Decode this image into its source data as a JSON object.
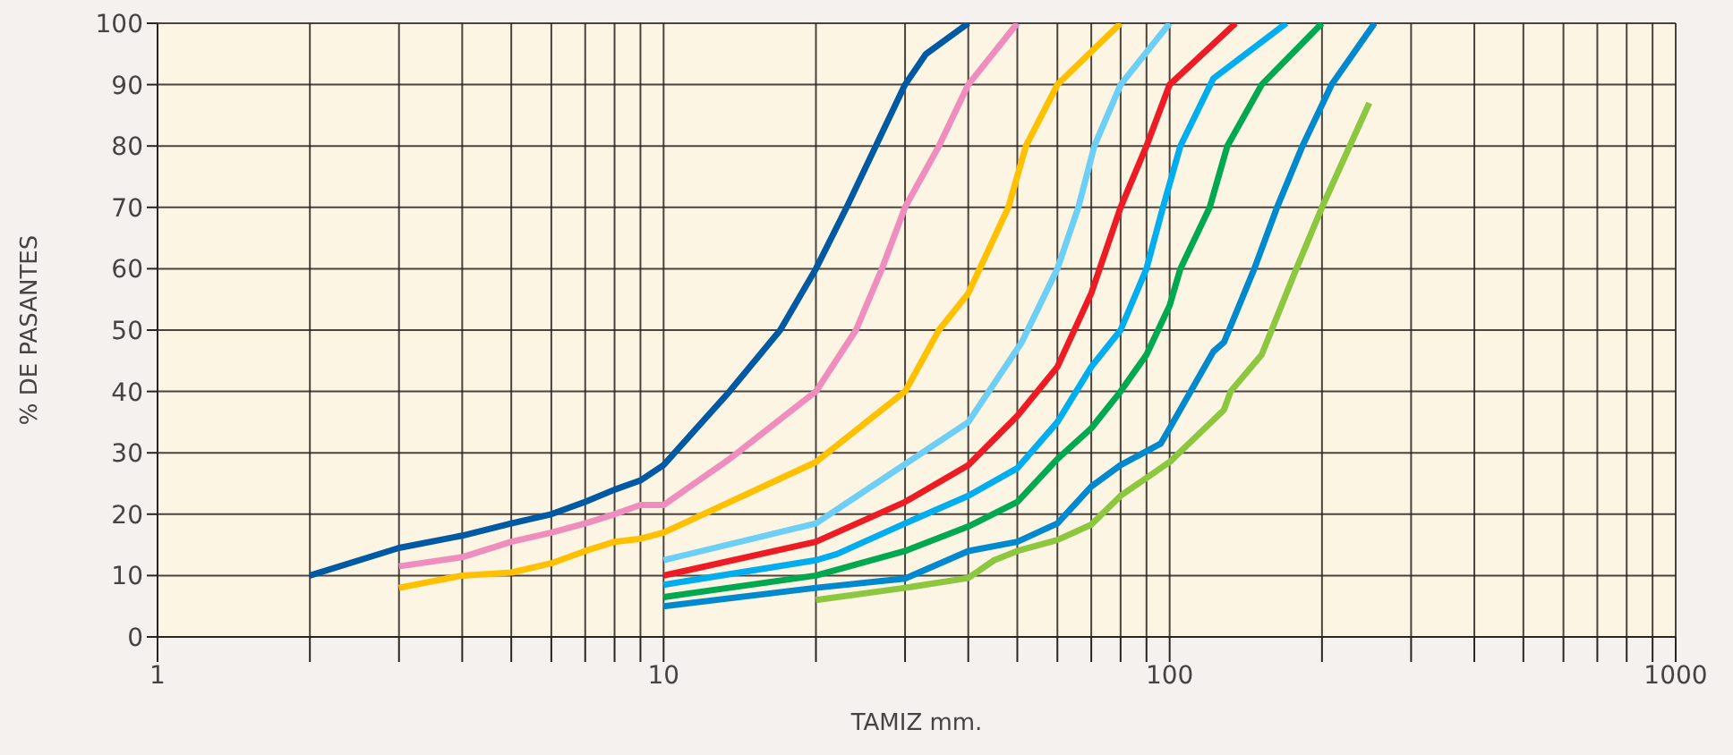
{
  "chart_data": {
    "type": "line",
    "xlabel": "TAMIZ mm.",
    "ylabel": "% DE PASANTES",
    "log": "x",
    "grid": true,
    "legend": false,
    "marker": "none",
    "line_style": "solid",
    "xlim": [
      1,
      1000
    ],
    "ylim": [
      0,
      100
    ],
    "xticks": [
      1,
      {
        "value": 2,
        "label": null
      },
      {
        "value": 3,
        "label": null
      },
      {
        "value": 4,
        "label": null
      },
      {
        "value": 5,
        "label": null
      },
      {
        "value": 6,
        "label": null
      },
      {
        "value": 7,
        "label": null
      },
      {
        "value": 8,
        "label": null
      },
      {
        "value": 9,
        "label": null
      },
      10,
      {
        "value": 20,
        "label": null
      },
      {
        "value": 30,
        "label": null
      },
      {
        "value": 40,
        "label": null
      },
      {
        "value": 50,
        "label": null
      },
      {
        "value": 60,
        "label": null
      },
      {
        "value": 70,
        "label": null
      },
      {
        "value": 80,
        "label": null
      },
      {
        "value": 90,
        "label": null
      },
      100,
      {
        "value": 200,
        "label": null
      },
      {
        "value": 300,
        "label": null
      },
      {
        "value": 400,
        "label": null
      },
      {
        "value": 500,
        "label": null
      },
      {
        "value": 600,
        "label": null
      },
      {
        "value": 700,
        "label": null
      },
      {
        "value": 800,
        "label": null
      },
      {
        "value": 900,
        "label": null
      },
      1000
    ],
    "yticks": [
      0,
      10,
      20,
      30,
      40,
      50,
      60,
      70,
      80,
      90,
      100
    ],
    "series": [
      {
        "color": "#0059a3",
        "x": [
          2,
          3,
          4,
          5,
          6,
          7,
          8,
          9,
          10,
          13.5,
          17,
          20,
          23,
          30,
          33,
          40
        ],
        "values": [
          10,
          14.5,
          16.5,
          18.5,
          20,
          22,
          24,
          25.5,
          28,
          40,
          50,
          60,
          70,
          90,
          95,
          100
        ]
      },
      {
        "color": "#f08dbf",
        "x": [
          3,
          4,
          5,
          6,
          7,
          8,
          9,
          10,
          13.5,
          20,
          24,
          27,
          30,
          35,
          40,
          50
        ],
        "values": [
          11.5,
          13,
          15.5,
          17,
          18.5,
          20,
          21.5,
          21.5,
          29,
          40,
          50,
          60,
          70,
          80,
          90,
          100
        ]
      },
      {
        "color": "#ffc000",
        "x": [
          3,
          4,
          5,
          6,
          7,
          8,
          9,
          10,
          20,
          30,
          35,
          40,
          48,
          52,
          60,
          80
        ],
        "values": [
          8,
          10,
          10.5,
          12,
          14,
          15.5,
          16,
          17,
          28.5,
          40,
          50,
          56,
          70,
          80,
          90,
          100
        ]
      },
      {
        "color": "#6dcff6",
        "x": [
          10,
          20,
          40,
          51,
          60,
          66,
          71,
          80,
          100
        ],
        "values": [
          12.5,
          18.5,
          35,
          48,
          60,
          70,
          80,
          90,
          100
        ]
      },
      {
        "color": "#ed1c24",
        "x": [
          10,
          20,
          30,
          40,
          50,
          60,
          70,
          80,
          90,
          100,
          135
        ],
        "values": [
          10,
          15.5,
          22,
          28,
          36,
          44,
          56,
          70,
          80,
          90,
          100
        ]
      },
      {
        "color": "#00aeef",
        "x": [
          10,
          20,
          22,
          30,
          40,
          50,
          60,
          70,
          80,
          90,
          97,
          105,
          122,
          170
        ],
        "values": [
          8.5,
          12.5,
          13.5,
          18.5,
          23,
          27.5,
          35,
          44,
          50,
          60,
          70,
          80,
          91,
          100
        ]
      },
      {
        "color": "#00a84f",
        "x": [
          10,
          20,
          30,
          40,
          50,
          60,
          70,
          80,
          90,
          100,
          105,
          120,
          130,
          152,
          200
        ],
        "values": [
          6.5,
          10,
          14,
          18,
          22,
          29,
          34,
          40,
          46,
          54,
          60,
          70,
          80,
          90,
          100
        ]
      },
      {
        "color": "#0089cf",
        "x": [
          10,
          20,
          30,
          40,
          50,
          60,
          70,
          80,
          96,
          100,
          122,
          128,
          147,
          163,
          183,
          209,
          254
        ],
        "values": [
          5,
          8,
          9.5,
          14,
          15.5,
          18.5,
          24.5,
          28,
          31.5,
          34,
          46.5,
          48,
          60,
          70,
          80,
          90,
          100
        ]
      },
      {
        "color": "#8dc63f",
        "x": [
          20,
          30,
          40,
          45,
          50,
          60,
          70,
          80,
          100,
          128,
          132,
          152,
          178,
          200,
          248
        ],
        "values": [
          6,
          8,
          9.6,
          12.5,
          14,
          15.8,
          18.3,
          23,
          28.5,
          37,
          40,
          46,
          60,
          70,
          87
        ]
      }
    ]
  }
}
